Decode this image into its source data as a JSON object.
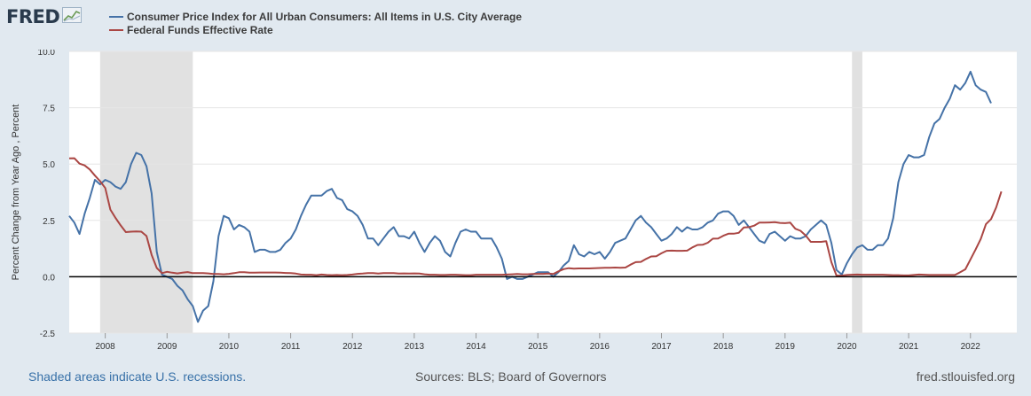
{
  "header": {
    "logo_text": "FRED",
    "logo_icon": "line-chart-icon"
  },
  "legend": [
    {
      "label": "Consumer Price Index for All Urban Consumers: All Items in U.S. City Average",
      "color": "#4572a7"
    },
    {
      "label": "Federal Funds Effective Rate",
      "color": "#aa4643"
    }
  ],
  "footer": {
    "recession_note": "Shaded areas indicate U.S. recessions.",
    "sources": "Sources: BLS; Board of Governors",
    "url": "fred.stlouisfed.org"
  },
  "chart_data": {
    "type": "line",
    "title": "",
    "xlabel": "",
    "ylabel": "Percent Change from Year Ago , Percent",
    "xlim": [
      "2007-06",
      "2022-10"
    ],
    "ylim": [
      -2.5,
      10.0
    ],
    "yticks": [
      -2.5,
      0.0,
      2.5,
      5.0,
      7.5,
      10.0
    ],
    "ytick_labels": [
      "-2.5",
      "0.0",
      "2.5",
      "5.0",
      "7.5",
      "10.0"
    ],
    "xticks": [
      "2008",
      "2009",
      "2010",
      "2011",
      "2012",
      "2013",
      "2014",
      "2015",
      "2016",
      "2017",
      "2018",
      "2019",
      "2020",
      "2021",
      "2022"
    ],
    "grid": true,
    "zero_line": true,
    "legend_position": "top-left",
    "recessions": [
      {
        "start": "2007-12",
        "end": "2009-06"
      },
      {
        "start": "2020-02",
        "end": "2020-04"
      }
    ],
    "series": [
      {
        "name": "Consumer Price Index for All Urban Consumers: All Items in U.S. City Average",
        "color": "#4572a7",
        "start": "2007-06",
        "values": [
          2.7,
          2.4,
          1.9,
          2.8,
          3.5,
          4.3,
          4.1,
          4.3,
          4.2,
          4.0,
          3.9,
          4.2,
          5.0,
          5.5,
          5.4,
          4.9,
          3.7,
          1.1,
          0.1,
          0.0,
          -0.1,
          -0.4,
          -0.6,
          -1.0,
          -1.3,
          -2.0,
          -1.5,
          -1.3,
          -0.2,
          1.8,
          2.7,
          2.6,
          2.1,
          2.3,
          2.2,
          2.0,
          1.1,
          1.2,
          1.2,
          1.1,
          1.1,
          1.2,
          1.5,
          1.7,
          2.1,
          2.7,
          3.2,
          3.6,
          3.6,
          3.6,
          3.8,
          3.9,
          3.5,
          3.4,
          3.0,
          2.9,
          2.7,
          2.3,
          1.7,
          1.7,
          1.4,
          1.7,
          2.0,
          2.2,
          1.8,
          1.8,
          1.7,
          2.0,
          1.5,
          1.1,
          1.5,
          1.8,
          1.6,
          1.1,
          0.9,
          1.5,
          2.0,
          2.1,
          2.0,
          2.0,
          1.7,
          1.7,
          1.7,
          1.3,
          0.8,
          -0.1,
          0.0,
          -0.1,
          -0.1,
          0.0,
          0.1,
          0.2,
          0.2,
          0.2,
          0.0,
          0.2,
          0.5,
          0.7,
          1.4,
          1.0,
          0.9,
          1.1,
          1.0,
          1.1,
          0.8,
          1.1,
          1.5,
          1.6,
          1.7,
          2.1,
          2.5,
          2.7,
          2.4,
          2.2,
          1.9,
          1.6,
          1.7,
          1.9,
          2.2,
          2.0,
          2.2,
          2.1,
          2.1,
          2.2,
          2.4,
          2.5,
          2.8,
          2.9,
          2.9,
          2.7,
          2.3,
          2.5,
          2.2,
          1.9,
          1.6,
          1.5,
          1.9,
          2.0,
          1.8,
          1.6,
          1.8,
          1.7,
          1.7,
          1.8,
          2.1,
          2.3,
          2.5,
          2.3,
          1.5,
          0.3,
          0.1,
          0.6,
          1.0,
          1.3,
          1.4,
          1.2,
          1.2,
          1.4,
          1.4,
          1.7,
          2.6,
          4.2,
          5.0,
          5.4,
          5.3,
          5.3,
          5.4,
          6.2,
          6.8,
          7.0,
          7.5,
          7.9,
          8.5,
          8.3,
          8.6,
          9.1,
          8.5,
          8.3,
          8.2,
          7.7
        ]
      },
      {
        "name": "Federal Funds Effective Rate",
        "color": "#aa4643",
        "start": "2007-06",
        "values": [
          5.25,
          5.26,
          5.02,
          4.94,
          4.76,
          4.49,
          4.24,
          3.94,
          2.98,
          2.61,
          2.28,
          1.98,
          2.0,
          2.01,
          2.0,
          1.81,
          0.97,
          0.39,
          0.16,
          0.22,
          0.18,
          0.15,
          0.18,
          0.21,
          0.16,
          0.16,
          0.16,
          0.15,
          0.12,
          0.12,
          0.11,
          0.13,
          0.16,
          0.2,
          0.2,
          0.18,
          0.18,
          0.19,
          0.19,
          0.19,
          0.19,
          0.18,
          0.17,
          0.16,
          0.14,
          0.1,
          0.09,
          0.09,
          0.07,
          0.1,
          0.08,
          0.07,
          0.08,
          0.07,
          0.08,
          0.1,
          0.13,
          0.14,
          0.16,
          0.16,
          0.14,
          0.16,
          0.16,
          0.16,
          0.14,
          0.15,
          0.14,
          0.15,
          0.14,
          0.11,
          0.09,
          0.09,
          0.08,
          0.08,
          0.09,
          0.09,
          0.08,
          0.07,
          0.07,
          0.09,
          0.09,
          0.09,
          0.09,
          0.09,
          0.09,
          0.1,
          0.11,
          0.12,
          0.11,
          0.11,
          0.12,
          0.13,
          0.13,
          0.14,
          0.12,
          0.24,
          0.34,
          0.38,
          0.36,
          0.37,
          0.37,
          0.37,
          0.38,
          0.39,
          0.4,
          0.4,
          0.41,
          0.4,
          0.41,
          0.54,
          0.65,
          0.66,
          0.79,
          0.9,
          0.91,
          1.04,
          1.15,
          1.16,
          1.15,
          1.15,
          1.16,
          1.3,
          1.41,
          1.42,
          1.51,
          1.69,
          1.7,
          1.82,
          1.91,
          1.91,
          1.95,
          2.19,
          2.2,
          2.27,
          2.4,
          2.4,
          2.41,
          2.42,
          2.39,
          2.38,
          2.4,
          2.13,
          2.04,
          1.83,
          1.55,
          1.55,
          1.55,
          1.58,
          0.65,
          0.05,
          0.05,
          0.08,
          0.09,
          0.1,
          0.09,
          0.09,
          0.09,
          0.09,
          0.09,
          0.08,
          0.07,
          0.07,
          0.06,
          0.06,
          0.08,
          0.1,
          0.09,
          0.08,
          0.08,
          0.08,
          0.08,
          0.08,
          0.08,
          0.2,
          0.33,
          0.77,
          1.21,
          1.68,
          2.33,
          2.56,
          3.08,
          3.78
        ]
      }
    ]
  }
}
